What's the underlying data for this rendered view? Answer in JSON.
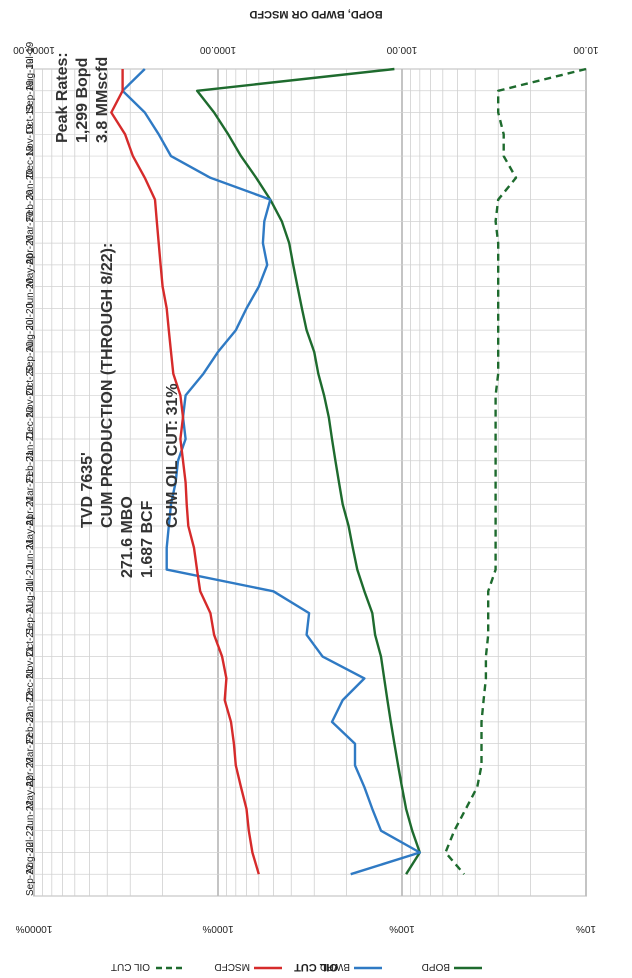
{
  "chart_data": {
    "type": "line",
    "orientation": "rotated 180 degrees",
    "xlabel": "",
    "ylabel": "BOPD, BWPD OR MSCFD",
    "y2label": "OIL CUT",
    "yscale": "log",
    "ylim": [
      10,
      10000
    ],
    "y_ticks": [
      "10.00",
      "100.00",
      "1000.00",
      "10000.00"
    ],
    "y2scale": "log",
    "y2lim": [
      10,
      10000
    ],
    "y2_ticks": [
      "10%",
      "100%",
      "1000%",
      "10000%"
    ],
    "grid": true,
    "legend_position": "bottom",
    "categories": [
      "Jul-19",
      "Aug-19",
      "Sep-19",
      "Oct-19",
      "Nov-19",
      "Dec-19",
      "Jan-20",
      "Feb-20",
      "Mar-20",
      "Apr-20",
      "May-20",
      "Jun-20",
      "Jul-20",
      "Aug-20",
      "Sep-20",
      "Oct-20",
      "Nov-20",
      "Dec-20",
      "Jan-21",
      "Feb-21",
      "Mar-21",
      "Apr-21",
      "May-21",
      "Jun-21",
      "Jul-21",
      "Aug-21",
      "Sep-21",
      "Oct-21",
      "Nov-21",
      "Dec-21",
      "Jan-22",
      "Feb-22",
      "Mar-22",
      "Apr-22",
      "May-22",
      "Jun-22",
      "Jul-22",
      "Aug-22",
      "Sep-22"
    ],
    "series": [
      {
        "name": "BOPD",
        "color": "#1e6b2e",
        "dash": "solid",
        "axis": "left",
        "values": [
          110,
          1299,
          1050,
          880,
          750,
          620,
          520,
          450,
          410,
          390,
          370,
          350,
          330,
          300,
          285,
          265,
          250,
          240,
          230,
          220,
          210,
          195,
          185,
          175,
          160,
          145,
          140,
          130,
          125,
          120,
          115,
          110,
          105,
          100,
          95,
          88,
          80,
          95,
          null
        ]
      },
      {
        "name": "BWPD",
        "color": "#2f7ac4",
        "dash": "solid",
        "axis": "left",
        "values": [
          2500,
          3300,
          2500,
          2100,
          1800,
          1100,
          520,
          560,
          570,
          540,
          600,
          700,
          800,
          1000,
          1200,
          1500,
          1550,
          1500,
          1650,
          1700,
          1800,
          1850,
          1900,
          1900,
          500,
          320,
          330,
          270,
          160,
          210,
          240,
          180,
          180,
          160,
          145,
          130,
          80,
          190,
          null
        ]
      },
      {
        "name": "MSCFD",
        "color": "#d62b2b",
        "dash": "solid",
        "axis": "left",
        "values": [
          3300,
          3300,
          3800,
          3200,
          2900,
          2500,
          2200,
          2150,
          2100,
          2050,
          2000,
          1900,
          1850,
          1800,
          1750,
          1600,
          1550,
          1600,
          1550,
          1500,
          1480,
          1450,
          1350,
          1300,
          1250,
          1100,
          1050,
          950,
          900,
          920,
          850,
          820,
          800,
          750,
          700,
          680,
          650,
          600,
          null
        ]
      },
      {
        "name": "OIL CUT",
        "color": "#1e6b2e",
        "dash": "dashed",
        "axis": "right",
        "values": [
          10,
          30,
          30,
          28,
          28,
          24,
          30,
          31,
          30,
          30,
          30,
          30,
          30,
          30,
          30,
          31,
          31,
          31,
          31,
          31,
          31,
          31,
          31,
          31,
          34,
          34,
          34,
          35,
          35,
          36,
          37,
          37,
          37,
          39,
          45,
          52,
          58,
          46,
          null
        ]
      }
    ],
    "annotations": {
      "peak_title": "Peak Rates:",
      "peak_bopd": "1,299 Bopd",
      "peak_gas": "3.8 MMscfd",
      "tvd": "TVD 7635'",
      "cum_title": "CUM PRODUCTION (THROUGH 8/22):",
      "cum_oil": "271.6 MBO",
      "cum_gas": "1.687 BCF",
      "cum_oil_cut": "CUM OIL CUT: 31%"
    }
  }
}
